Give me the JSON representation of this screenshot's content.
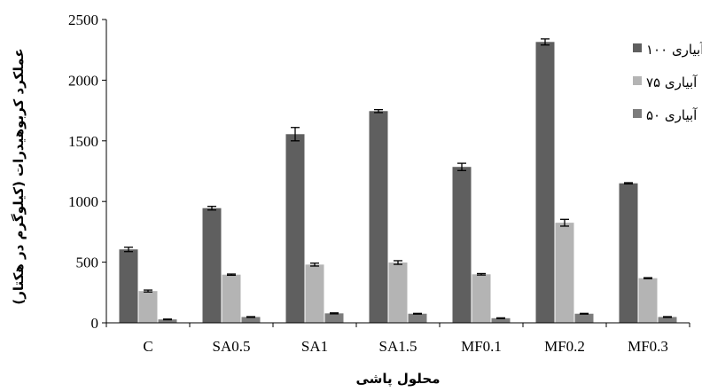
{
  "chart_data": {
    "type": "bar",
    "categories": [
      "C",
      "SA0.5",
      "SA1",
      "SA1.5",
      "MF0.1",
      "MF0.2",
      "MF0.3"
    ],
    "series": [
      {
        "name": "آبیاری ۱۰۰",
        "color": "#5f5f5f",
        "values": [
          605,
          945,
          1555,
          1745,
          1285,
          2315,
          1150
        ],
        "errors": [
          18,
          15,
          55,
          12,
          30,
          25,
          5
        ]
      },
      {
        "name": "آبیاری ۷۵",
        "color": "#b4b4b4",
        "values": [
          262,
          397,
          480,
          497,
          400,
          825,
          368
        ],
        "errors": [
          8,
          5,
          12,
          15,
          6,
          28,
          4
        ]
      },
      {
        "name": "آبیاری ۵۰",
        "color": "#7c7c7c",
        "values": [
          28,
          48,
          78,
          75,
          38,
          75,
          48
        ],
        "errors": [
          3,
          3,
          4,
          3,
          3,
          3,
          3
        ]
      }
    ],
    "xlabel": "محلول پاشی",
    "ylabel": "عملکرد کربوهیدرات (کیلوگرم در هکتار)",
    "ylim": [
      0,
      2500
    ],
    "yticks": [
      0,
      500,
      1000,
      1500,
      2000,
      2500
    ],
    "legend_position": "right",
    "grid": false
  }
}
